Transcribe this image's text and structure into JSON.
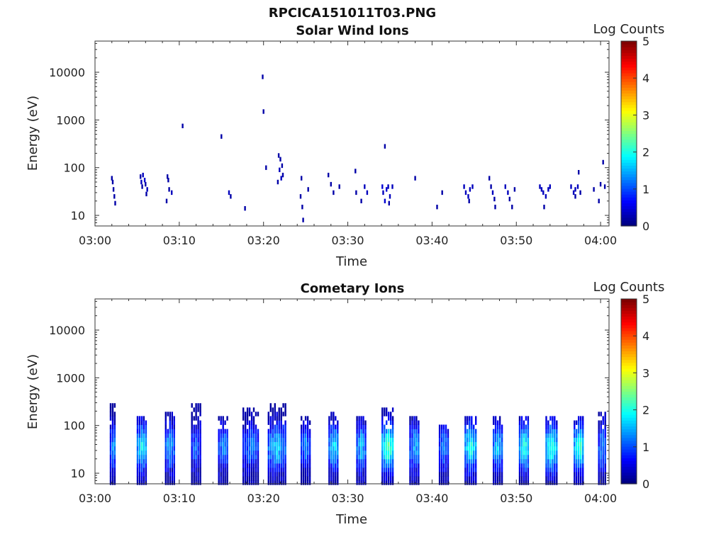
{
  "figure_title": "RPCICA151011T03.PNG",
  "chart_data": [
    {
      "type": "heatmap",
      "title": "Solar Wind Ions",
      "xlabel": "Time",
      "ylabel": "Energy (eV)",
      "x_ticks": [
        "03:00",
        "03:10",
        "03:20",
        "03:30",
        "03:40",
        "03:50",
        "04:00"
      ],
      "xlim": [
        "03:00",
        "04:01"
      ],
      "y_scale": "log",
      "y_ticks": [
        10,
        100,
        1000,
        10000
      ],
      "ylim": [
        6,
        45000
      ],
      "colorbar": {
        "label": "Log Counts",
        "range": [
          0,
          5
        ],
        "ticks": [
          0,
          1,
          2,
          3,
          4,
          5
        ],
        "colormap": "jet"
      },
      "cells": [
        [
          2.0,
          60,
          0.2
        ],
        [
          2.1,
          50,
          0.2
        ],
        [
          2.2,
          35,
          0.2
        ],
        [
          2.3,
          25,
          0.2
        ],
        [
          2.4,
          18,
          0.2
        ],
        [
          5.4,
          65,
          0.2
        ],
        [
          5.5,
          50,
          0.3
        ],
        [
          5.6,
          40,
          0.2
        ],
        [
          5.7,
          70,
          0.3
        ],
        [
          5.9,
          55,
          0.4
        ],
        [
          6.0,
          45,
          0.2
        ],
        [
          6.1,
          28,
          0.2
        ],
        [
          6.2,
          35,
          0.3
        ],
        [
          8.6,
          65,
          0.2
        ],
        [
          8.7,
          55,
          0.2
        ],
        [
          8.8,
          35,
          0.2
        ],
        [
          8.5,
          20,
          0.2
        ],
        [
          9.1,
          30,
          0.3
        ],
        [
          10.4,
          750,
          0.2
        ],
        [
          15.0,
          450,
          0.2
        ],
        [
          15.9,
          30,
          0.3
        ],
        [
          16.1,
          25,
          0.2
        ],
        [
          17.8,
          14,
          0.2
        ],
        [
          19.9,
          8000,
          0.2
        ],
        [
          20.0,
          1500,
          0.2
        ],
        [
          20.3,
          100,
          0.2
        ],
        [
          21.8,
          180,
          0.2
        ],
        [
          22.0,
          150,
          0.2
        ],
        [
          21.9,
          90,
          0.3
        ],
        [
          22.2,
          110,
          0.2
        ],
        [
          22.3,
          70,
          0.2
        ],
        [
          21.7,
          50,
          0.2
        ],
        [
          22.1,
          60,
          0.3
        ],
        [
          24.5,
          60,
          0.2
        ],
        [
          24.4,
          25,
          0.2
        ],
        [
          24.6,
          15,
          0.2
        ],
        [
          24.7,
          8,
          0.2
        ],
        [
          25.3,
          35,
          0.2
        ],
        [
          27.7,
          70,
          0.2
        ],
        [
          28.0,
          45,
          0.2
        ],
        [
          28.3,
          30,
          0.2
        ],
        [
          29.0,
          40,
          0.2
        ],
        [
          31.0,
          30,
          0.2
        ],
        [
          31.6,
          20,
          0.2
        ],
        [
          32.0,
          40,
          0.3
        ],
        [
          32.3,
          30,
          0.3
        ],
        [
          30.9,
          85,
          0.2
        ],
        [
          34.4,
          280,
          0.2
        ],
        [
          34.1,
          40,
          0.4
        ],
        [
          34.2,
          30,
          0.3
        ],
        [
          34.4,
          20,
          0.4
        ],
        [
          34.6,
          35,
          0.4
        ],
        [
          34.8,
          40,
          0.3
        ],
        [
          35.0,
          25,
          0.3
        ],
        [
          35.3,
          40,
          0.3
        ],
        [
          34.9,
          18,
          0.2
        ],
        [
          38.0,
          60,
          0.2
        ],
        [
          40.6,
          15,
          0.2
        ],
        [
          41.2,
          30,
          0.2
        ],
        [
          43.8,
          40,
          0.3
        ],
        [
          44.0,
          30,
          0.3
        ],
        [
          44.3,
          25,
          0.3
        ],
        [
          44.5,
          35,
          0.3
        ],
        [
          44.8,
          40,
          0.3
        ],
        [
          44.4,
          20,
          0.2
        ],
        [
          47.0,
          40,
          0.2
        ],
        [
          47.2,
          30,
          0.3
        ],
        [
          47.4,
          22,
          0.2
        ],
        [
          47.5,
          15,
          0.2
        ],
        [
          46.8,
          60,
          0.2
        ],
        [
          48.7,
          40,
          0.3
        ],
        [
          49.0,
          30,
          0.3
        ],
        [
          49.2,
          22,
          0.2
        ],
        [
          49.5,
          15,
          0.2
        ],
        [
          49.8,
          35,
          0.2
        ],
        [
          52.8,
          40,
          0.3
        ],
        [
          53.0,
          35,
          0.3
        ],
        [
          53.2,
          30,
          0.3
        ],
        [
          53.5,
          25,
          0.3
        ],
        [
          53.8,
          35,
          0.3
        ],
        [
          54.0,
          40,
          0.3
        ],
        [
          53.3,
          15,
          0.2
        ],
        [
          56.5,
          40,
          0.3
        ],
        [
          56.8,
          30,
          0.3
        ],
        [
          57.0,
          35,
          0.3
        ],
        [
          57.3,
          40,
          0.3
        ],
        [
          57.6,
          30,
          0.2
        ],
        [
          57.4,
          80,
          0.2
        ],
        [
          57.0,
          25,
          0.2
        ],
        [
          59.2,
          35,
          0.2
        ],
        [
          60.0,
          45,
          0.2
        ],
        [
          60.3,
          130,
          0.2
        ],
        [
          59.8,
          20,
          0.2
        ],
        [
          60.5,
          40,
          0.2
        ]
      ]
    },
    {
      "type": "heatmap",
      "title": "Cometary Ions",
      "xlabel": "Time",
      "ylabel": "Energy (eV)",
      "x_ticks": [
        "03:00",
        "03:10",
        "03:20",
        "03:30",
        "03:40",
        "03:50",
        "04:00"
      ],
      "xlim": [
        "03:00",
        "04:01"
      ],
      "y_scale": "log",
      "y_ticks": [
        10,
        100,
        1000,
        10000
      ],
      "ylim": [
        6,
        45000
      ],
      "colorbar": {
        "label": "Log Counts",
        "range": [
          0,
          5
        ],
        "ticks": [
          0,
          1,
          2,
          3,
          4,
          5
        ],
        "colormap": "jet"
      },
      "bursts": [
        [
          2.2,
          0.7,
          1.4,
          300
        ],
        [
          5.6,
          1.1,
          1.9,
          150
        ],
        [
          8.9,
          1.0,
          1.5,
          200
        ],
        [
          12.0,
          1.0,
          1.1,
          300
        ],
        [
          15.3,
          1.2,
          1.3,
          150
        ],
        [
          18.5,
          1.8,
          1.2,
          250
        ],
        [
          21.6,
          2.0,
          1.7,
          300
        ],
        [
          25.0,
          1.0,
          1.3,
          150
        ],
        [
          28.4,
          1.2,
          1.8,
          200
        ],
        [
          31.6,
          1.0,
          1.6,
          150
        ],
        [
          34.8,
          1.4,
          2.4,
          250
        ],
        [
          38.0,
          1.2,
          1.5,
          150
        ],
        [
          41.4,
          1.0,
          1.2,
          100
        ],
        [
          44.6,
          1.3,
          2.1,
          150
        ],
        [
          47.8,
          1.0,
          1.7,
          150
        ],
        [
          51.0,
          1.2,
          2.1,
          150
        ],
        [
          54.2,
          1.3,
          2.2,
          150
        ],
        [
          57.5,
          1.2,
          2.2,
          150
        ],
        [
          60.2,
          0.8,
          1.4,
          200
        ]
      ]
    }
  ]
}
